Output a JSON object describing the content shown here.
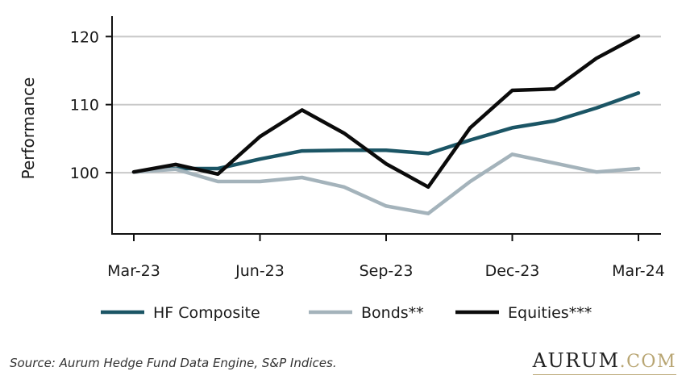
{
  "chart_data": {
    "type": "line",
    "ylabel": "Performance",
    "xlabel": "",
    "ylim": [
      91,
      123
    ],
    "yticks": [
      100,
      110,
      120
    ],
    "x": [
      "Mar-23",
      "Apr-23",
      "May-23",
      "Jun-23",
      "Jul-23",
      "Aug-23",
      "Sep-23",
      "Oct-23",
      "Nov-23",
      "Dec-23",
      "Jan-24",
      "Feb-24",
      "Mar-24"
    ],
    "xtick_labels": [
      "Mar-23",
      "Jun-23",
      "Sep-23",
      "Dec-23",
      "Mar-24"
    ],
    "grid": "horizontal",
    "legend_position": "bottom",
    "series": [
      {
        "name": "HF Composite",
        "color": "#1b5565",
        "values": [
          100.1,
          100.6,
          100.6,
          102.0,
          103.2,
          103.3,
          103.3,
          102.8,
          104.8,
          106.6,
          107.6,
          109.5,
          111.7
        ]
      },
      {
        "name": "Bonds**",
        "color": "#a4b3bb",
        "values": [
          100.1,
          100.5,
          98.7,
          98.7,
          99.3,
          97.9,
          95.1,
          94.0,
          98.7,
          102.7,
          101.4,
          100.1,
          100.6
        ]
      },
      {
        "name": "Equities***",
        "color": "#0b0b0b",
        "values": [
          100.1,
          101.2,
          99.8,
          105.3,
          109.2,
          105.8,
          101.3,
          97.9,
          106.6,
          112.1,
          112.3,
          116.8,
          120.1
        ]
      }
    ]
  },
  "footer": {
    "source": "Source: Aurum Hedge Fund Data Engine, S&P Indices.",
    "brand_name": "AURUM",
    "brand_tld": ".COM"
  }
}
